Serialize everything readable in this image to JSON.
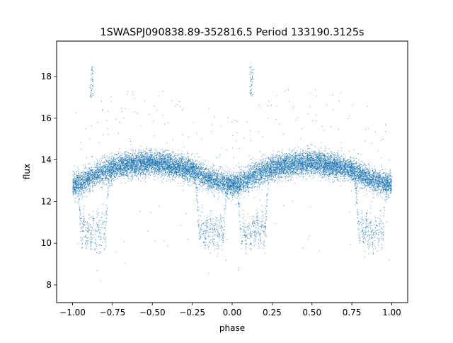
{
  "chart_data": {
    "type": "scatter",
    "title": "1SWASPJ090838.89-352816.5 Period 133190.3125s",
    "xlabel": "phase",
    "ylabel": "flux",
    "xlim": [
      -1.1,
      1.1
    ],
    "ylim": [
      7.15,
      19.7
    ],
    "x_ticks": [
      -1.0,
      -0.75,
      -0.5,
      -0.25,
      0.0,
      0.25,
      0.5,
      0.75,
      1.0
    ],
    "x_tick_labels": [
      "−1.00",
      "−0.75",
      "−0.50",
      "−0.25",
      "0.00",
      "0.25",
      "0.50",
      "0.75",
      "1.00"
    ],
    "y_ticks": [
      8,
      10,
      12,
      14,
      16,
      18
    ],
    "y_tick_labels": [
      "8",
      "10",
      "12",
      "14",
      "16",
      "18"
    ],
    "grid": false,
    "legend": "none",
    "series": [
      {
        "color": "#1f77b4",
        "marker_size": 1,
        "point_count": 14000,
        "phase_fold": "mirrored",
        "baseline_profile": {
          "phase": [
            0.0,
            0.05,
            0.1,
            0.15,
            0.2,
            0.25,
            0.3,
            0.35,
            0.4,
            0.45,
            0.5,
            0.55,
            0.6,
            0.65,
            0.7,
            0.75,
            0.8,
            0.85,
            0.9,
            0.95,
            1.0
          ],
          "flux": [
            12.8,
            12.9,
            13.1,
            13.3,
            13.5,
            13.6,
            13.7,
            13.75,
            13.8,
            13.85,
            13.85,
            13.8,
            13.75,
            13.7,
            13.6,
            13.5,
            13.3,
            13.1,
            13.0,
            12.9,
            12.8
          ]
        },
        "eclipse_tracks": {
          "ingress_phase_range": [
            0.12,
            0.19
          ],
          "egress_phase_range": [
            0.02,
            0.1
          ],
          "minimum_flux": 9.8,
          "count": 6
        },
        "outlier_clusters": [
          {
            "phase": [
              0.11,
              0.13
            ],
            "flux": [
              17.0,
              18.5
            ]
          },
          {
            "phase": [
              -0.89,
              -0.87
            ],
            "flux": [
              17.0,
              18.5
            ]
          }
        ],
        "scatter_sigma": 0.28
      }
    ]
  }
}
